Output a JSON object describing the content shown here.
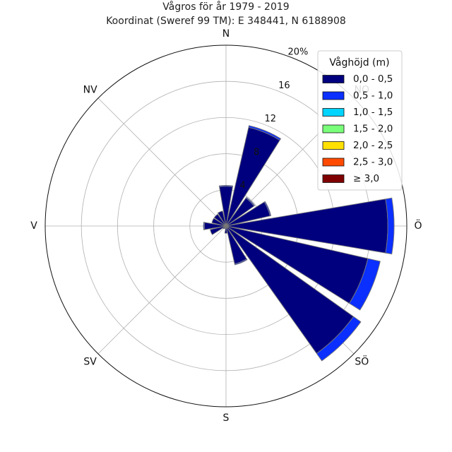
{
  "chart_data": {
    "type": "windrose",
    "title": "Vågros för år 1979 - 2019",
    "subtitle": "Koordinat (Sweref 99 TM): E 348441, N 6188908",
    "direction_labels": [
      "N",
      "NV",
      "V",
      "SV",
      "S",
      "SÖ",
      "Ö",
      "NO"
    ],
    "directions_deg": [
      0,
      22.5,
      45,
      67.5,
      90,
      112.5,
      135,
      157.5,
      180,
      202.5,
      225,
      247.5,
      270,
      292.5,
      315,
      337.5
    ],
    "radial_ticks": [
      "4",
      "8",
      "12",
      "16",
      "20%"
    ],
    "rlim": [
      0,
      20
    ],
    "legend": {
      "title": "Våghöjd (m)",
      "placement": "top-right",
      "bins": [
        "0,0 - 0,5",
        "0,5 - 1,0",
        "1,0 - 1,5",
        "1,5 - 2,0",
        "2,0 - 2,5",
        "2,5 - 3,0",
        "≥ 3,0"
      ]
    },
    "colors": [
      "#00007f",
      "#0a2fff",
      "#00d4ff",
      "#7aff7a",
      "#ffe000",
      "#ff4a00",
      "#7f0000"
    ],
    "series": [
      {
        "name": "0,0 - 0,5",
        "values": [
          4.4,
          11.2,
          3.8,
          5.0,
          17.9,
          16.1,
          17.3,
          4.3,
          0.8,
          0.3,
          0.4,
          1.8,
          2.4,
          1.6,
          1.6,
          1.7
        ]
      },
      {
        "name": "0,5 - 1,0",
        "values": [
          0.1,
          0.2,
          0.1,
          0.1,
          0.7,
          1.4,
          1.0,
          0.1,
          0,
          0,
          0,
          0,
          0.1,
          0,
          0,
          0
        ]
      },
      {
        "name": "1,0 - 1,5",
        "values": [
          0,
          0,
          0,
          0,
          0,
          0,
          0,
          0,
          0,
          0,
          0,
          0,
          0,
          0,
          0,
          0
        ]
      },
      {
        "name": "1,5 - 2,0",
        "values": [
          0,
          0,
          0,
          0,
          0,
          0,
          0,
          0,
          0,
          0,
          0,
          0,
          0,
          0,
          0,
          0
        ]
      },
      {
        "name": "2,0 - 2,5",
        "values": [
          0,
          0,
          0,
          0,
          0,
          0,
          0,
          0,
          0,
          0,
          0,
          0,
          0,
          0,
          0,
          0
        ]
      },
      {
        "name": "2,5 - 3,0",
        "values": [
          0,
          0,
          0,
          0,
          0,
          0,
          0,
          0,
          0,
          0,
          0,
          0,
          0,
          0,
          0,
          0
        ]
      },
      {
        "name": "≥ 3,0",
        "values": [
          0,
          0,
          0,
          0,
          0,
          0,
          0,
          0,
          0,
          0,
          0,
          0,
          0,
          0,
          0,
          0
        ]
      }
    ]
  }
}
